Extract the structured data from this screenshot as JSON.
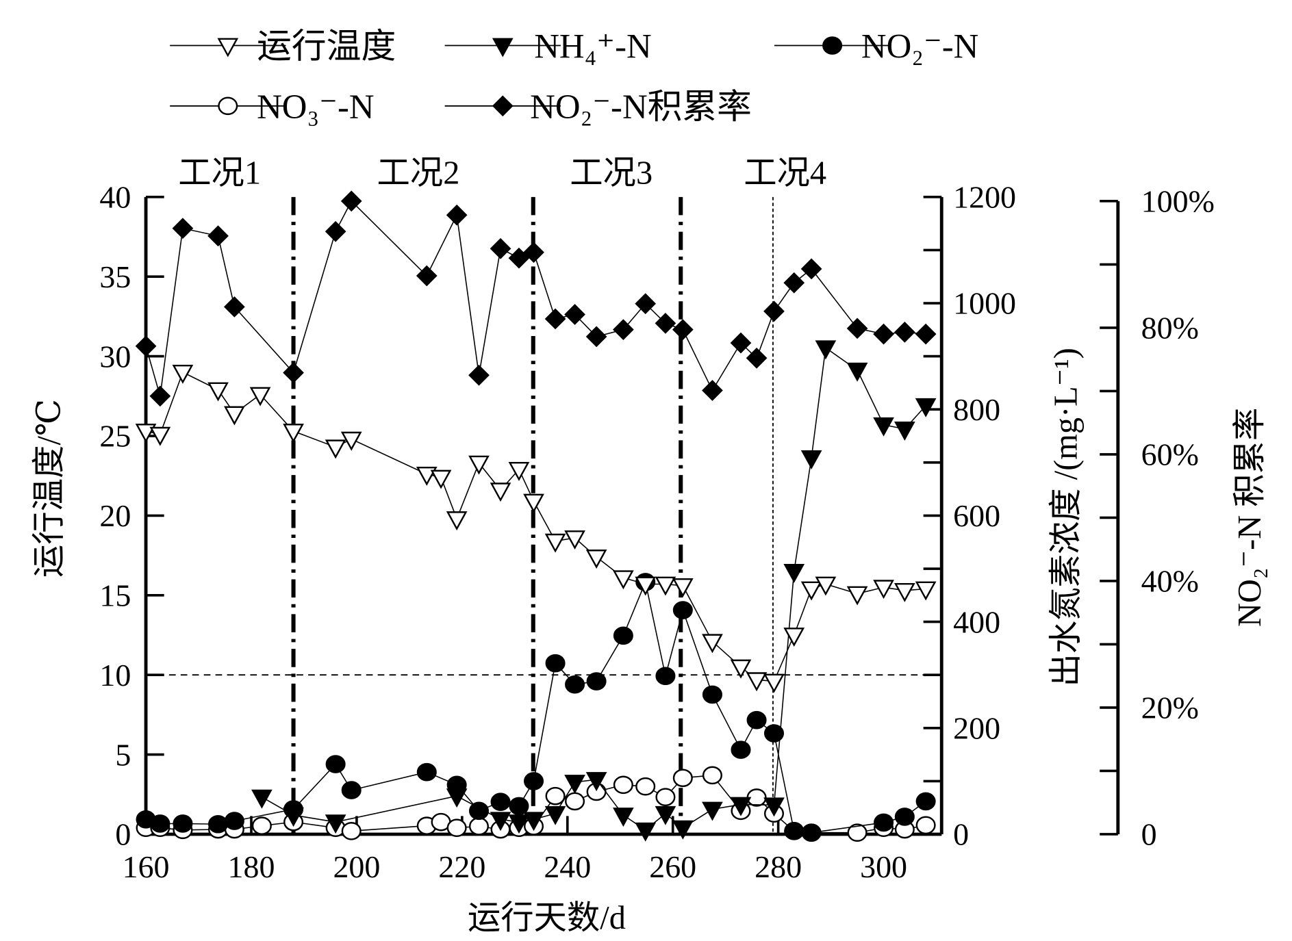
{
  "chart_data": {
    "type": "line",
    "xlabel": "运行天数/d",
    "ylabel_left": "运行温度/℃",
    "ylabel_right": "出水氮素浓度 /(mg·L⁻¹)",
    "ylabel_right2": "NO₂⁻-N 积累率",
    "xlim": [
      160,
      311
    ],
    "xticks": [
      "160",
      "180",
      "200",
      "220",
      "240",
      "260",
      "280",
      "300"
    ],
    "ylim_left": [
      0,
      40
    ],
    "yticks_left": [
      "0",
      "5",
      "10",
      "15",
      "20",
      "25",
      "30",
      "35",
      "40"
    ],
    "ylim_right": [
      0,
      1200
    ],
    "yticks_right": [
      "0",
      "200",
      "400",
      "600",
      "800",
      "1000",
      "1200"
    ],
    "ylim_right2": [
      0,
      100
    ],
    "yticks_right2": [
      "0",
      "20%",
      "40%",
      "60%",
      "80%",
      "100%"
    ],
    "legend_position": "top",
    "stages": [
      {
        "label": "工况1",
        "boundary": 188
      },
      {
        "label": "工况2",
        "boundary": 233.5
      },
      {
        "label": "工况3",
        "boundary": 261.5
      },
      {
        "label": "工况4",
        "boundary": 279
      }
    ],
    "reference_line_temperature": 10,
    "series": [
      {
        "name": "运行温度",
        "axis": "left",
        "marker": "open-down-triangle",
        "x": [
          160,
          162.7,
          167,
          173.7,
          176.8,
          181.7,
          188,
          196,
          199,
          213.3,
          216,
          219,
          223.2,
          227.3,
          230.8,
          233.6,
          237.7,
          241.4,
          245.5,
          250.6,
          254.8,
          258.6,
          261.9,
          267.5,
          272.9,
          275.9,
          279.2,
          283,
          286.3,
          289,
          295,
          300,
          304,
          308
        ],
        "y": [
          25.3,
          25.1,
          29,
          27.9,
          26.4,
          27.6,
          25.3,
          24.3,
          24.8,
          22.6,
          22.4,
          19.8,
          23.3,
          21.6,
          22.9,
          20.9,
          18.4,
          18.6,
          17.4,
          16.1,
          15.7,
          15.7,
          15.6,
          12.1,
          10.5,
          9.7,
          9.6,
          12.5,
          15.4,
          15.7,
          15.1,
          15.5,
          15.3,
          15.4
        ]
      },
      {
        "name": "NH₄⁺-N",
        "axis": "right",
        "marker": "filled-down-triangle",
        "x": [
          182,
          188,
          196,
          219,
          227.3,
          230.8,
          233.6,
          237.7,
          241.4,
          245.5,
          250.6,
          254.8,
          258.6,
          261.9,
          267.5,
          272.9,
          279.2,
          283,
          286.3,
          289,
          295,
          300,
          304,
          308
        ],
        "y": [
          70,
          36,
          23,
          72,
          28,
          23,
          28,
          39,
          98,
          103,
          36,
          8,
          39,
          12,
          47,
          56,
          55,
          495,
          709,
          916,
          874,
          771,
          763,
          807
        ]
      },
      {
        "name": "NO₂⁻-N",
        "axis": "right",
        "marker": "filled-circle",
        "x": [
          160,
          162.7,
          167,
          173.7,
          176.8,
          188,
          196,
          199,
          213.3,
          219,
          223.2,
          227.3,
          230.8,
          233.6,
          237.7,
          241.4,
          245.5,
          250.6,
          254.8,
          258.6,
          261.9,
          267.5,
          272.9,
          275.9,
          279.2,
          283,
          286.3,
          300,
          304,
          308
        ],
        "y": [
          28,
          20,
          20,
          19,
          25,
          47,
          132,
          83,
          117,
          93,
          44,
          61,
          53,
          100,
          322,
          282,
          288,
          374,
          475,
          298,
          422,
          263,
          159,
          215,
          190,
          6,
          3,
          22,
          33,
          62
        ]
      },
      {
        "name": "NO₃⁻-N",
        "axis": "right",
        "marker": "open-circle",
        "x": [
          160,
          162.7,
          167,
          173.7,
          176.8,
          182,
          188,
          196,
          199,
          213.3,
          216,
          219,
          223.2,
          227.3,
          230.8,
          233.6,
          237.7,
          241.4,
          245.5,
          250.6,
          254.8,
          258.6,
          261.9,
          267.5,
          272.9,
          275.9,
          279.2,
          283,
          286.3,
          295,
          300,
          304,
          308
        ],
        "y": [
          12,
          12,
          8,
          9,
          9,
          16,
          23,
          12,
          6,
          16,
          23,
          12,
          15,
          9,
          12,
          15,
          72,
          62,
          80,
          93,
          90,
          70,
          106,
          111,
          44,
          69,
          39,
          6,
          3,
          3,
          12,
          9,
          17
        ]
      },
      {
        "name": "NO₂⁻-N积累率",
        "axis": "right2",
        "marker": "filled-diamond",
        "x": [
          160,
          162.7,
          167,
          173.7,
          176.8,
          188,
          196,
          199,
          213.3,
          219,
          223.2,
          227.3,
          230.8,
          233.6,
          237.7,
          241.4,
          245.5,
          250.6,
          254.8,
          258.6,
          261.9,
          267.5,
          272.9,
          275.9,
          279.2,
          283,
          286.3,
          295,
          300,
          304,
          308
        ],
        "y": [
          77.1,
          69.2,
          95.7,
          94.5,
          83.3,
          72.9,
          95.2,
          100,
          88.2,
          97.8,
          72.5,
          92.5,
          91,
          91.9,
          81.4,
          82.1,
          78.6,
          79.7,
          83.8,
          80.7,
          79.7,
          70.1,
          77.6,
          75.2,
          82.6,
          87.1,
          89.3,
          79.9,
          79,
          79.3,
          79
        ]
      }
    ]
  },
  "legend": {
    "items": [
      "运行温度",
      "NH₄⁺-N",
      "NO₂⁻-N",
      "NO₃⁻-N",
      "NO₂⁻-N积累率"
    ]
  }
}
